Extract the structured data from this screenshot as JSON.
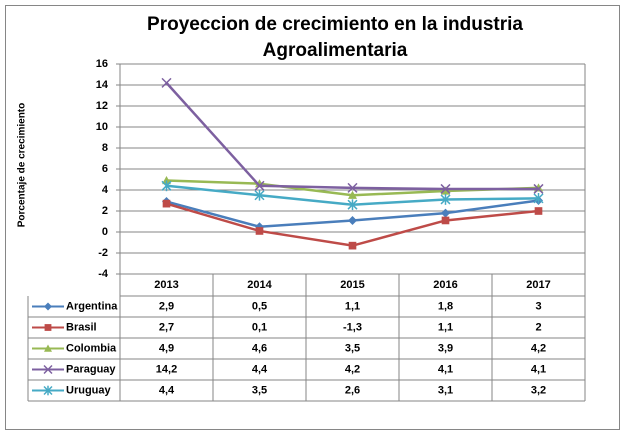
{
  "chart_data": {
    "type": "line",
    "title": "Proyeccion de crecimiento en la industria Agroalimentaria",
    "y_label": "Porcentaje de crecimiento",
    "categories": [
      "2013",
      "2014",
      "2015",
      "2016",
      "2017"
    ],
    "ylim": [
      -4,
      16
    ],
    "yticks": [
      -4,
      -2,
      0,
      2,
      4,
      6,
      8,
      10,
      12,
      14,
      16
    ],
    "grid": true,
    "series": [
      {
        "name": "Argentina",
        "color": "#4a7ebb",
        "marker": "diamond",
        "values": [
          2.9,
          0.5,
          1.1,
          1.8,
          3
        ],
        "value_labels": [
          "2,9",
          "0,5",
          "1,1",
          "1,8",
          "3"
        ]
      },
      {
        "name": "Brasil",
        "color": "#be4b48",
        "marker": "square",
        "values": [
          2.7,
          0.1,
          -1.3,
          1.1,
          2
        ],
        "value_labels": [
          "2,7",
          "0,1",
          "-1,3",
          "1,1",
          "2"
        ]
      },
      {
        "name": "Colombia",
        "color": "#98b954",
        "marker": "triangle",
        "values": [
          4.9,
          4.6,
          3.5,
          3.9,
          4.2
        ],
        "value_labels": [
          "4,9",
          "4,6",
          "3,5",
          "3,9",
          "4,2"
        ]
      },
      {
        "name": "Paraguay",
        "color": "#7d60a0",
        "marker": "x",
        "values": [
          14.2,
          4.4,
          4.2,
          4.1,
          4.1
        ],
        "value_labels": [
          "14,2",
          "4,4",
          "4,2",
          "4,1",
          "4,1"
        ]
      },
      {
        "name": "Uruguay",
        "color": "#46aac5",
        "marker": "star",
        "values": [
          4.4,
          3.5,
          2.6,
          3.1,
          3.2
        ],
        "value_labels": [
          "4,4",
          "3,5",
          "2,6",
          "3,1",
          "3,2"
        ]
      }
    ]
  }
}
